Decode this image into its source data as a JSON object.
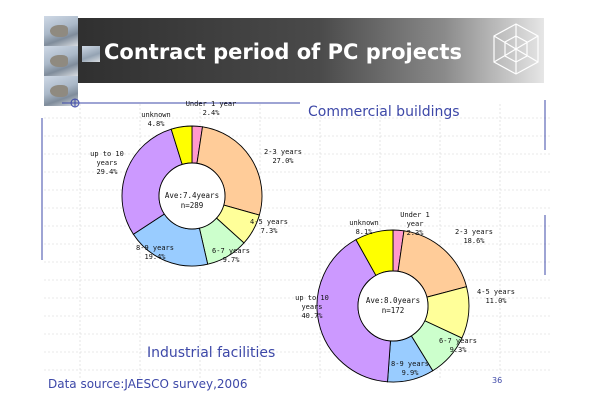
{
  "slide": {
    "title": "Contract period of PC projects",
    "source": "Data source:JAESCO survey,2006",
    "page_number": "36"
  },
  "chart_data": [
    {
      "type": "pie",
      "variant": "donut",
      "title": "Commercial buildings",
      "center_text": [
        "Ave:7.4years",
        "n=289"
      ],
      "slices": [
        {
          "label": "Under 1 year",
          "value": 2.4,
          "value_label": "2.4%",
          "color": "#ff99cc"
        },
        {
          "label": "2-3 years",
          "value": 27.0,
          "value_label": "27.0%",
          "color": "#ffcc99"
        },
        {
          "label": "4-5 years",
          "value": 7.3,
          "value_label": "7.3%",
          "color": "#ffff99"
        },
        {
          "label": "6-7 years",
          "value": 9.7,
          "value_label": "9.7%",
          "color": "#ccffcc"
        },
        {
          "label": "8-9 years",
          "value": 19.4,
          "value_label": "19.4%",
          "color": "#99ccff"
        },
        {
          "label": "up to 10 years",
          "value": 29.4,
          "value_label": "29.4%",
          "color": "#cc99ff"
        },
        {
          "label": "unknown",
          "value": 4.8,
          "value_label": "4.8%",
          "color": "#ffff00"
        }
      ]
    },
    {
      "type": "pie",
      "variant": "donut",
      "title": "Industrial facilities",
      "center_text": [
        "Ave:8.0years",
        "n=172"
      ],
      "slices": [
        {
          "label": "Under 1 year",
          "value": 2.3,
          "value_label": "2.3%",
          "color": "#ff99cc"
        },
        {
          "label": "2-3 years",
          "value": 18.6,
          "value_label": "18.6%",
          "color": "#ffcc99"
        },
        {
          "label": "4-5 years",
          "value": 11.0,
          "value_label": "11.0%",
          "color": "#ffff99"
        },
        {
          "label": "6-7 years",
          "value": 9.3,
          "value_label": "9.3%",
          "color": "#ccffcc"
        },
        {
          "label": "8-9 years",
          "value": 9.9,
          "value_label": "9.9%",
          "color": "#99ccff"
        },
        {
          "label": "up to 10 years",
          "value": 40.7,
          "value_label": "40.7%",
          "color": "#cc99ff"
        },
        {
          "label": "unknown",
          "value": 8.1,
          "value_label": "8.1%",
          "color": "#ffff00"
        }
      ]
    }
  ]
}
